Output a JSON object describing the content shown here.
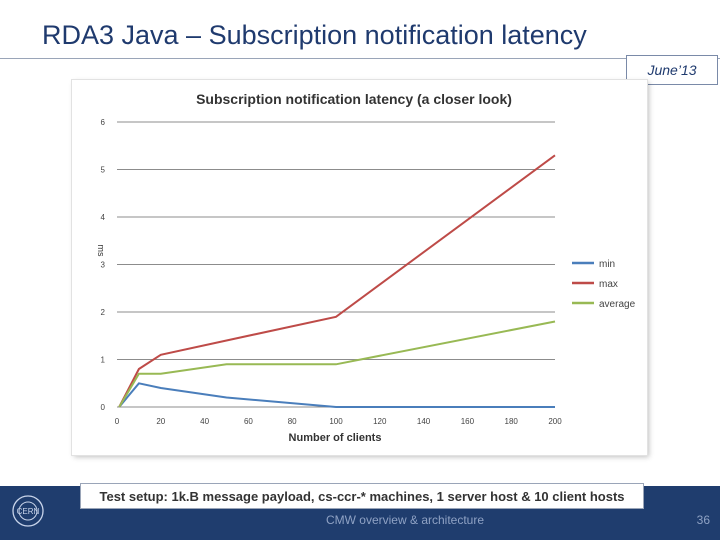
{
  "slide": {
    "title": "RDA3 Java – Subscription notification latency",
    "date": "June’13",
    "setup_note": "Test setup: 1k.B message payload, cs-ccr-* machines, 1 server host & 10 client hosts",
    "footer_center": "CMW overview & architecture",
    "page_number": "36"
  },
  "colors": {
    "title": "#1f3a6e",
    "footer": "#1f3d6e",
    "grid": "#8c8c8c"
  },
  "chart_data": {
    "type": "line",
    "title": "Subscription notification latency (a closer look)",
    "xlabel": "Number of clients",
    "ylabel": "ms",
    "x_ticks": [
      0,
      20,
      40,
      60,
      80,
      100,
      120,
      140,
      160,
      180,
      200
    ],
    "y_ticks": [
      0,
      1,
      2,
      3,
      4,
      5,
      6
    ],
    "xlim": [
      0,
      200
    ],
    "ylim": [
      0,
      6
    ],
    "grid": "horizontal",
    "legend_position": "right",
    "x": [
      1,
      10,
      20,
      50,
      100,
      200
    ],
    "series": [
      {
        "name": "min",
        "color": "#4a7ebb",
        "values": [
          0,
          0.5,
          0.4,
          0.2,
          0,
          0
        ]
      },
      {
        "name": "max",
        "color": "#be4b48",
        "values": [
          0,
          0.8,
          1.1,
          1.4,
          1.9,
          5.3
        ]
      },
      {
        "name": "average",
        "color": "#98b954",
        "values": [
          0,
          0.7,
          0.7,
          0.9,
          0.9,
          1.8
        ]
      }
    ]
  }
}
